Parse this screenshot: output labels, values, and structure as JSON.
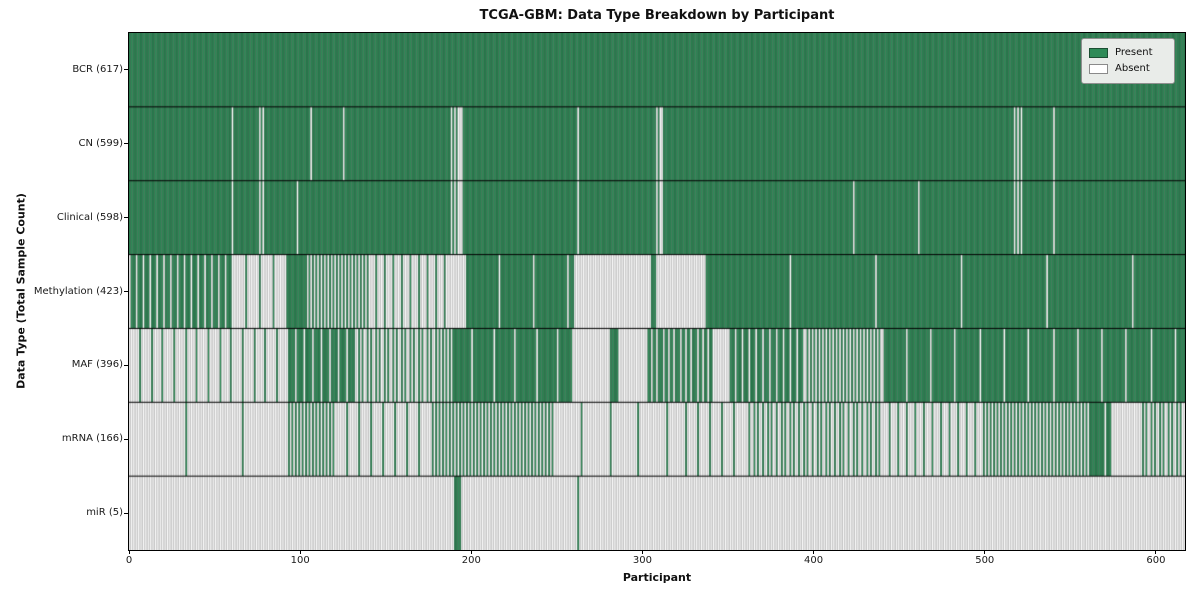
{
  "figure": {
    "title": "TCGA-GBM: Data Type Breakdown by Participant",
    "x_axis_label": "Participant",
    "y_axis_label": "Data Type (Total Sample Count)"
  },
  "legend": {
    "items": [
      {
        "label": "Present",
        "color": "#2e8b57"
      },
      {
        "label": "Absent",
        "color": "#ffffff"
      }
    ]
  },
  "chart_data": {
    "type": "heatmap",
    "title": "TCGA-GBM: Data Type Breakdown by Participant",
    "xlabel": "Participant",
    "ylabel": "Data Type (Total Sample Count)",
    "n_participants": 617,
    "xlim": [
      0,
      617
    ],
    "x_ticks": [
      0,
      100,
      200,
      300,
      400,
      500,
      600
    ],
    "grid": false,
    "legend_position": "upper right",
    "colors": {
      "present_fill": "#2e8b57",
      "present_edge": "#1c4f33",
      "absent_fill": "#ffffff",
      "absent_edge": "#9a9a9a",
      "divider": "#000000",
      "plot_border": "#000000",
      "legend_bg": "#e9ece9"
    },
    "runs_encoding": "runs are [length, value] along participants 0..616; value 1=present, 0=absent, fraction=estimated share of present participants interleaved evenly in that span",
    "rows": [
      {
        "label": "BCR (617)",
        "data_type": "BCR",
        "present_count": 617,
        "runs": [
          [
            617,
            1
          ]
        ]
      },
      {
        "label": "CN (599)",
        "data_type": "CN",
        "present_count": 599,
        "runs": [
          [
            60,
            1
          ],
          [
            1,
            0
          ],
          [
            15,
            1
          ],
          [
            1,
            0
          ],
          [
            1,
            1
          ],
          [
            1,
            0
          ],
          [
            27,
            1
          ],
          [
            1,
            0
          ],
          [
            18,
            1
          ],
          [
            1,
            0
          ],
          [
            62,
            1
          ],
          [
            1,
            0
          ],
          [
            1,
            1
          ],
          [
            1,
            0
          ],
          [
            1,
            1
          ],
          [
            3,
            0
          ],
          [
            67,
            1
          ],
          [
            1,
            0
          ],
          [
            45,
            1
          ],
          [
            1,
            0
          ],
          [
            1,
            1
          ],
          [
            2,
            0
          ],
          [
            205,
            1
          ],
          [
            1,
            0
          ],
          [
            1,
            1
          ],
          [
            1,
            0
          ],
          [
            1,
            1
          ],
          [
            1,
            0
          ],
          [
            18,
            1
          ],
          [
            1,
            0
          ],
          [
            76,
            1
          ]
        ]
      },
      {
        "label": "Clinical (598)",
        "data_type": "Clinical",
        "present_count": 598,
        "runs": [
          [
            60,
            1
          ],
          [
            1,
            0
          ],
          [
            15,
            1
          ],
          [
            1,
            0
          ],
          [
            1,
            1
          ],
          [
            1,
            0
          ],
          [
            19,
            1
          ],
          [
            1,
            0
          ],
          [
            89,
            1
          ],
          [
            1,
            0
          ],
          [
            1,
            1
          ],
          [
            1,
            0
          ],
          [
            1,
            1
          ],
          [
            3,
            0
          ],
          [
            67,
            1
          ],
          [
            1,
            0
          ],
          [
            45,
            1
          ],
          [
            1,
            0
          ],
          [
            1,
            1
          ],
          [
            2,
            0
          ],
          [
            111,
            1
          ],
          [
            1,
            0
          ],
          [
            37,
            1
          ],
          [
            1,
            0
          ],
          [
            55,
            1
          ],
          [
            1,
            0
          ],
          [
            1,
            1
          ],
          [
            1,
            0
          ],
          [
            1,
            1
          ],
          [
            1,
            0
          ],
          [
            18,
            1
          ],
          [
            1,
            0
          ],
          [
            76,
            1
          ]
        ]
      },
      {
        "label": "Methylation (423)",
        "data_type": "Methylation",
        "present_count": 423,
        "runs": [
          [
            60,
            0.75
          ],
          [
            32,
            0.12
          ],
          [
            12,
            1
          ],
          [
            36,
            0.5
          ],
          [
            46,
            0.2
          ],
          [
            10,
            0
          ],
          [
            64,
            0.95
          ],
          [
            45,
            0
          ],
          [
            3,
            1
          ],
          [
            28,
            0
          ],
          [
            281,
            0.98
          ]
        ]
      },
      {
        "label": "MAF (396)",
        "data_type": "MAF",
        "present_count": 396,
        "runs": [
          [
            92,
            0.15
          ],
          [
            40,
            0.8
          ],
          [
            48,
            0.4
          ],
          [
            8,
            0.5
          ],
          [
            71,
            0.92
          ],
          [
            22,
            0
          ],
          [
            5,
            1
          ],
          [
            16,
            0
          ],
          [
            39,
            0.7
          ],
          [
            9,
            0
          ],
          [
            45,
            0.75
          ],
          [
            45,
            0.5
          ],
          [
            177,
            0.93
          ]
        ]
      },
      {
        "label": "mRNA (166)",
        "data_type": "mRNA",
        "present_count": 166,
        "runs": [
          [
            92,
            0.03
          ],
          [
            28,
            0.5
          ],
          [
            56,
            0.14
          ],
          [
            72,
            0.5
          ],
          [
            70,
            0.06
          ],
          [
            42,
            0.14
          ],
          [
            80,
            0.38
          ],
          [
            60,
            0.2
          ],
          [
            60,
            0.5
          ],
          [
            14,
            0.9
          ],
          [
            16,
            0
          ],
          [
            27,
            0.4
          ]
        ]
      },
      {
        "label": "miR (5)",
        "data_type": "miR",
        "present_count": 5,
        "runs": [
          [
            190,
            0
          ],
          [
            4,
            1
          ],
          [
            68,
            0
          ],
          [
            1,
            1
          ],
          [
            354,
            0
          ]
        ]
      }
    ]
  }
}
